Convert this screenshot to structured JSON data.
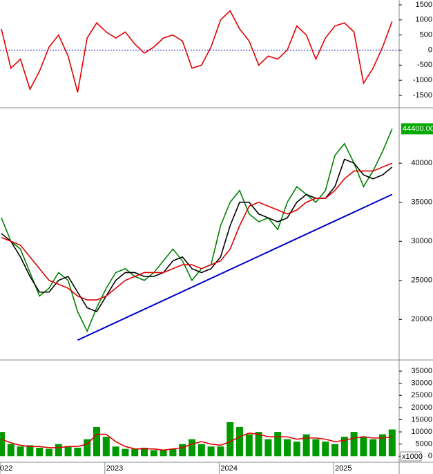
{
  "chart_data": [
    {
      "type": "line",
      "ylim": [
        -1890,
        1660
      ],
      "yticks": [
        1500,
        1000,
        500,
        0,
        -500,
        -1000,
        -1500
      ],
      "zero_line": {
        "value": 0,
        "color": "#0000cc"
      },
      "series": [
        {
          "color": "#e00000",
          "values": [
            700,
            -600,
            -300,
            -1300,
            -700,
            100,
            500,
            -200,
            -1400,
            400,
            900,
            600,
            400,
            600,
            200,
            -100,
            100,
            400,
            500,
            300,
            -600,
            -500,
            100,
            1000,
            1300,
            700,
            300,
            -500,
            -200,
            -300,
            0,
            800,
            500,
            -300,
            400,
            800,
            900,
            600,
            -1100,
            -600,
            100,
            950
          ]
        }
      ]
    },
    {
      "type": "line",
      "ylim": [
        14900,
        47000
      ],
      "yticks": [
        20000,
        25000,
        30000,
        35000,
        40000
      ],
      "series": [
        {
          "color": "#008000",
          "values": [
            33000,
            30000,
            29000,
            26000,
            23000,
            24000,
            26000,
            25000,
            21000,
            18500,
            21500,
            24000,
            26000,
            26500,
            25500,
            25000,
            26000,
            27500,
            29000,
            27500,
            25000,
            26500,
            27000,
            32000,
            35000,
            36500,
            33500,
            32500,
            33000,
            31500,
            35000,
            37000,
            36000,
            35000,
            36500,
            41000,
            42500,
            40000,
            37000,
            39000,
            41500,
            44400
          ]
        },
        {
          "color": "#000000",
          "values": [
            31000,
            30000,
            28000,
            25500,
            23500,
            23500,
            25000,
            25500,
            23500,
            21500,
            21000,
            23000,
            25000,
            26000,
            26000,
            25500,
            25500,
            26000,
            27500,
            28000,
            26500,
            26000,
            26500,
            28000,
            32000,
            35000,
            35000,
            33500,
            33000,
            32500,
            33000,
            35000,
            36000,
            35500,
            35500,
            37000,
            40500,
            40000,
            38500,
            38000,
            38500,
            39500
          ]
        },
        {
          "color": "#e00000",
          "values": [
            30500,
            30000,
            29500,
            28000,
            26500,
            25000,
            24500,
            24000,
            23000,
            22500,
            22500,
            23000,
            24000,
            25000,
            25500,
            26000,
            26000,
            26000,
            26500,
            27000,
            27000,
            26500,
            27000,
            27500,
            29000,
            32000,
            34500,
            35000,
            34500,
            34000,
            33500,
            34000,
            35000,
            35500,
            35500,
            36500,
            38000,
            39000,
            39000,
            39000,
            39500,
            40000
          ]
        }
      ],
      "trendline": {
        "color": "#0000cc",
        "start": [
          8,
          17350
        ],
        "end": [
          41,
          36000
        ]
      },
      "last_value": 44400,
      "last_label": "44400.00"
    },
    {
      "type": "bar",
      "ylim": [
        -2200,
        39300
      ],
      "yticks": [
        0,
        5000,
        10000,
        15000,
        20000,
        25000,
        30000,
        35000
      ],
      "unit_label": "x1000",
      "categories": [
        "022",
        null,
        null,
        null,
        null,
        null,
        null,
        null,
        null,
        null,
        null,
        "2023",
        null,
        null,
        null,
        null,
        null,
        null,
        null,
        null,
        null,
        null,
        null,
        "2024",
        null,
        null,
        null,
        null,
        null,
        null,
        null,
        null,
        null,
        null,
        null,
        "2025",
        null,
        null,
        null,
        null,
        null,
        null
      ],
      "values": [
        10000,
        5000,
        4000,
        4500,
        3500,
        3000,
        5000,
        4000,
        3500,
        7000,
        12000,
        8000,
        4000,
        3000,
        3000,
        3500,
        2500,
        2500,
        3000,
        5000,
        7000,
        5000,
        4000,
        4000,
        14000,
        12000,
        9000,
        10000,
        7000,
        10000,
        7000,
        6000,
        9000,
        7000,
        6000,
        5000,
        8000,
        10000,
        8000,
        7000,
        9000,
        11000
      ],
      "color": "#009900",
      "series": [
        {
          "color": "#e00000",
          "values": [
            7000,
            5500,
            4500,
            4000,
            4000,
            3500,
            3500,
            4000,
            4000,
            5000,
            9000,
            9000,
            6000,
            4000,
            3000,
            3000,
            3000,
            2500,
            3000,
            3500,
            5000,
            6000,
            5000,
            4500,
            6000,
            8000,
            9500,
            9000,
            8000,
            8000,
            8000,
            7000,
            7500,
            7500,
            7000,
            6000,
            6500,
            7500,
            8000,
            7500,
            7500,
            8000
          ]
        }
      ]
    }
  ]
}
